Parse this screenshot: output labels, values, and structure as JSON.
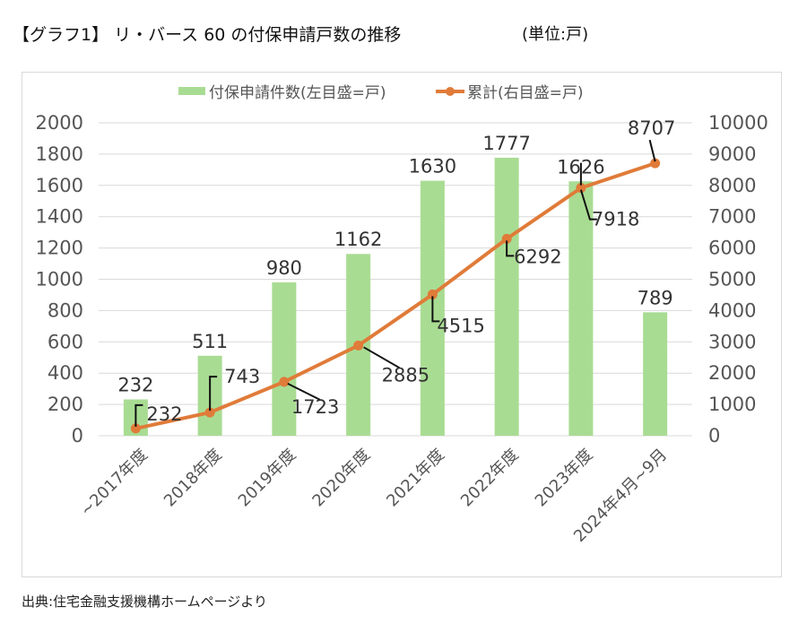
{
  "header": {
    "title": "【グラフ1】 リ・バース 60 の付保申請戸数の推移",
    "unit": "(単位:戸)"
  },
  "footer": {
    "source": "出典:住宅金融支援機構ホームページより"
  },
  "colors": {
    "bar": "#a9dc93",
    "line": "#e07b39",
    "grid": "#d9d9d9",
    "leader": "#111111"
  },
  "chart_data": {
    "type": "bar",
    "title": "",
    "categories": [
      "~2017年度",
      "2018年度",
      "2019年度",
      "2020年度",
      "2021年度",
      "2022年度",
      "2023年度",
      "2024年4月~9月"
    ],
    "series": [
      {
        "name": "付保申請件数(左目盛=戸)",
        "type": "bar",
        "axis": "left",
        "values": [
          232,
          511,
          980,
          1162,
          1630,
          1777,
          1626,
          789
        ],
        "labels": [
          "232",
          "511",
          "980",
          "1162",
          "1630",
          "1777",
          "1626",
          "789"
        ]
      },
      {
        "name": "累計(右目盛=戸)",
        "type": "line",
        "axis": "right",
        "values": [
          232,
          743,
          1723,
          2885,
          4515,
          6292,
          7918,
          8707
        ],
        "labels": [
          "232",
          "743",
          "1723",
          "2885",
          "4515",
          "6292",
          "7918",
          "8707"
        ]
      }
    ],
    "left_axis": {
      "ylim": [
        0,
        2000
      ],
      "ticks": [
        "0",
        "200",
        "400",
        "600",
        "800",
        "1000",
        "1200",
        "1400",
        "1600",
        "1800",
        "2000"
      ]
    },
    "right_axis": {
      "ylim": [
        0,
        10000
      ],
      "ticks": [
        "0",
        "1000",
        "2000",
        "3000",
        "4000",
        "5000",
        "6000",
        "7000",
        "8000",
        "9000",
        "10000"
      ]
    },
    "xlabel": "",
    "ylabel": "",
    "grid": true,
    "legend_position": "top-center"
  }
}
